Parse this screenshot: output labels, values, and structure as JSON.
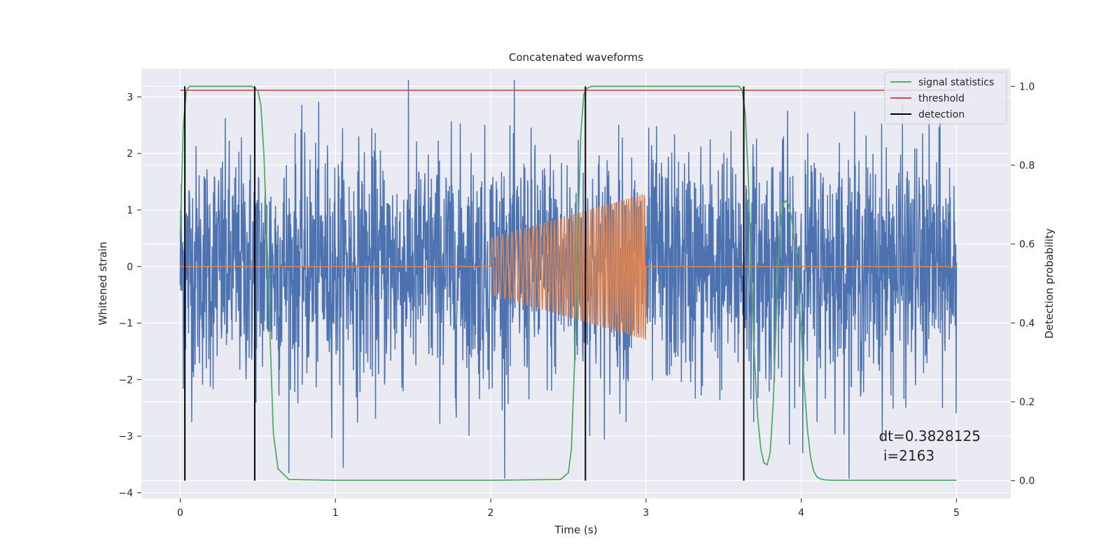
{
  "chart_data": {
    "type": "line",
    "title": "Concatenated waveforms",
    "xlabel": "Time (s)",
    "ylabel": "Whitened strain",
    "y2label": "Detection probability",
    "xlim": [
      -0.25,
      5.35
    ],
    "ylim": [
      -4.1,
      3.5
    ],
    "y2lim": [
      -0.045,
      1.045
    ],
    "x_ticks": [
      0,
      1,
      2,
      3,
      4,
      5
    ],
    "y_ticks": [
      -4,
      -3,
      -2,
      -1,
      0,
      1,
      2,
      3
    ],
    "y2_ticks": [
      0.0,
      0.2,
      0.4,
      0.6,
      0.8,
      1.0
    ],
    "x_tick_labels": [
      "0",
      "1",
      "2",
      "3",
      "4",
      "5"
    ],
    "y_tick_labels": [
      "−4",
      "−3",
      "−2",
      "−1",
      "0",
      "1",
      "2",
      "3"
    ],
    "y2_tick_labels": [
      "0.0",
      "0.2",
      "0.4",
      "0.6",
      "0.8",
      "1.0"
    ],
    "grid": true,
    "legend_position": "top-right",
    "colors": {
      "background": "#eaeaf2",
      "grid": "#ffffff",
      "strain": "#4c72b0",
      "injection": "#dd8452",
      "signal_statistics": "#55a868",
      "threshold": "#c44e52",
      "detection": "#000000"
    },
    "series": [
      {
        "name": "",
        "axis": "left",
        "description_kind": "noise",
        "x_range": [
          0,
          5
        ],
        "amplitude": 1.0
      },
      {
        "name": "",
        "axis": "left",
        "kind": "injection",
        "x": [
          0,
          2,
          2,
          3,
          3,
          5
        ],
        "y": [
          0,
          0,
          0.5,
          1.3,
          0,
          0
        ]
      },
      {
        "name": "signal statistics",
        "axis": "right",
        "x": [
          0,
          0.02,
          0.04,
          0.06,
          0.08,
          0.1,
          0.2,
          0.3,
          0.4,
          0.46,
          0.5,
          0.52,
          0.54,
          0.56,
          0.58,
          0.6,
          0.63,
          0.7,
          1.0,
          2.0,
          2.45,
          2.5,
          2.52,
          2.54,
          2.56,
          2.58,
          2.6,
          2.62,
          2.65,
          2.7,
          3.0,
          3.5,
          3.6,
          3.62,
          3.64,
          3.66,
          3.68,
          3.7,
          3.72,
          3.74,
          3.76,
          3.78,
          3.8,
          3.82,
          3.84,
          3.86,
          3.88,
          3.9,
          3.92,
          3.94,
          3.96,
          3.98,
          4.0,
          4.02,
          4.04,
          4.06,
          4.08,
          4.1,
          4.12,
          4.15,
          4.2,
          4.3,
          5.0
        ],
        "y": [
          0.62,
          0.9,
          0.99,
          1.0,
          1.0,
          1.0,
          1.0,
          1.0,
          1.0,
          1.0,
          0.99,
          0.95,
          0.82,
          0.6,
          0.35,
          0.12,
          0.03,
          0.003,
          0.001,
          0.001,
          0.003,
          0.02,
          0.08,
          0.3,
          0.6,
          0.88,
          0.98,
          0.995,
          1.0,
          1.0,
          1.0,
          1.0,
          1.0,
          0.99,
          0.93,
          0.76,
          0.52,
          0.3,
          0.16,
          0.08,
          0.045,
          0.04,
          0.07,
          0.2,
          0.42,
          0.62,
          0.7,
          0.71,
          0.7,
          0.66,
          0.6,
          0.5,
          0.38,
          0.24,
          0.13,
          0.06,
          0.025,
          0.01,
          0.005,
          0.002,
          0.001,
          0.001,
          0.001
        ]
      },
      {
        "name": "threshold",
        "axis": "right",
        "x": [
          0,
          5
        ],
        "y": [
          0.99,
          0.99
        ]
      },
      {
        "name": "detection",
        "axis": "right",
        "vlines_x": [
          0.03,
          0.48,
          2.61,
          3.63
        ],
        "y_range": [
          0.0,
          1.0
        ]
      }
    ],
    "annotation": {
      "line1": "dt=0.3828125",
      "line2": " i=2163",
      "x": 4.5,
      "y": -3.0
    }
  }
}
